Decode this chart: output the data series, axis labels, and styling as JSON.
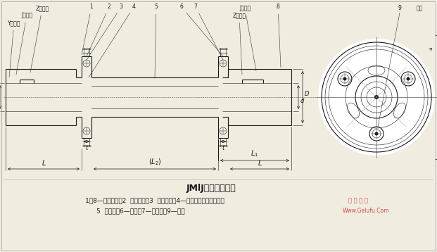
{
  "title": "JMlJ型膜片联轴器",
  "subtitle1": "1、8—半联轴器；2  扣紧螺母；3  六角螺母；4—六角头较制孔用螺栓；",
  "subtitle2": "5  中间轴；6—隔圈；7—支承圈；9—膜片",
  "watermark1": "普 大 机 械",
  "watermark2": "Www.Gelufu.Com",
  "bg_color": "#f0ece0",
  "line_color": "#1a1a1a",
  "font_size_title": 9,
  "font_size_text": 6.5,
  "font_size_small": 5.5,
  "font_size_label": 6
}
